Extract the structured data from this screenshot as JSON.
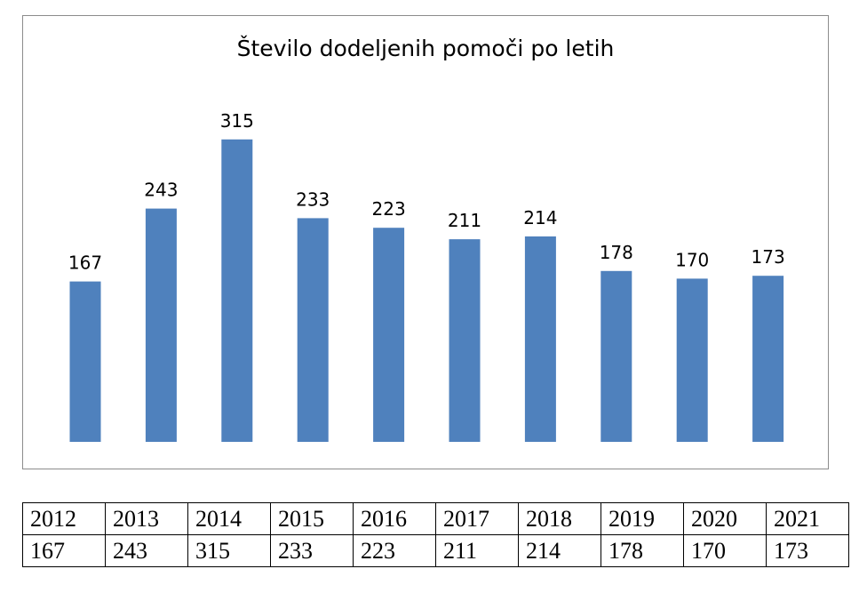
{
  "chart_data": {
    "type": "bar",
    "title": "Število dodeljenih pomoči po letih",
    "categories": [
      "2012",
      "2013",
      "2014",
      "2015",
      "2016",
      "2017",
      "2018",
      "2019",
      "2020",
      "2021"
    ],
    "values": [
      167,
      243,
      315,
      233,
      223,
      211,
      214,
      178,
      170,
      173
    ],
    "data_labels": [
      "167",
      "243",
      "315",
      "233",
      "223",
      "211",
      "214",
      "178",
      "170",
      "173"
    ],
    "ylim": [
      0,
      400
    ],
    "grid": false,
    "bar_color": "#4f81bd"
  },
  "table": {
    "years": [
      "2012",
      "2013",
      "2014",
      "2015",
      "2016",
      "2017",
      "2018",
      "2019",
      "2020",
      "2021"
    ],
    "counts": [
      "167",
      "243",
      "315",
      "233",
      "223",
      "211",
      "214",
      "178",
      "170",
      "173"
    ]
  }
}
